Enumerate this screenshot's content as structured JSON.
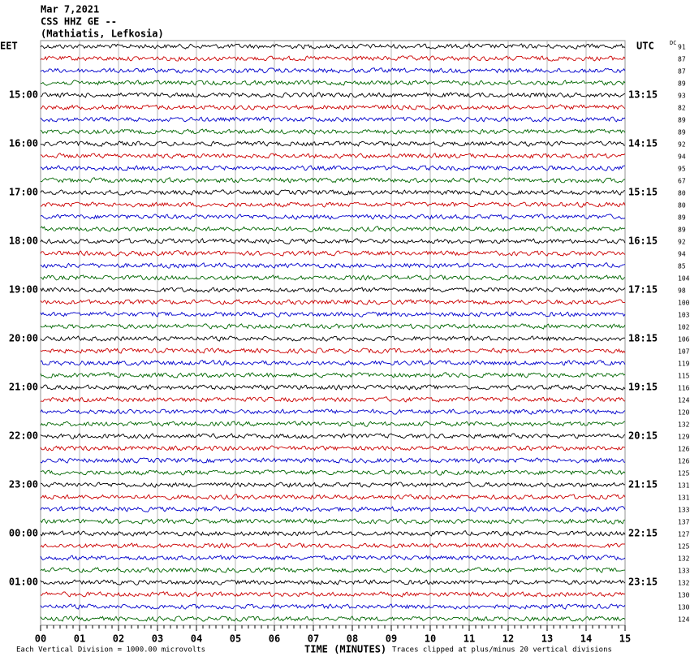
{
  "header": {
    "date": "Mar 7,2021",
    "station": "CSS HHZ GE --",
    "location": "(Mathiatis, Lefkosia)"
  },
  "left_zone": "EET",
  "right_zone": "UTC",
  "dc_label": "DC",
  "trace_colors": [
    "#000000",
    "#cc0000",
    "#0000cc",
    "#006600"
  ],
  "left_hours": [
    "15:00",
    "16:00",
    "17:00",
    "18:00",
    "19:00",
    "20:00",
    "21:00",
    "22:00",
    "23:00",
    "00:00",
    "01:00"
  ],
  "right_hours": [
    "13:15",
    "14:15",
    "15:15",
    "16:15",
    "17:15",
    "18:15",
    "19:15",
    "20:15",
    "21:15",
    "22:15",
    "23:15"
  ],
  "dc_values": [
    91,
    87,
    87,
    89,
    93,
    82,
    89,
    89,
    92,
    94,
    95,
    67,
    80,
    80,
    89,
    89,
    92,
    94,
    85,
    104,
    98,
    100,
    103,
    102,
    106,
    107,
    119,
    115,
    116,
    124,
    120,
    132,
    129,
    126,
    126,
    125,
    131,
    131,
    133,
    137,
    127,
    125,
    132,
    133,
    132,
    130,
    130,
    124
  ],
  "minute_ticks": [
    "00",
    "01",
    "02",
    "03",
    "04",
    "05",
    "06",
    "07",
    "08",
    "09",
    "10",
    "11",
    "12",
    "13",
    "14",
    "15"
  ],
  "x_label": "TIME (MINUTES)",
  "scale_note": "Each Vertical Division = 1000.00 microvolts",
  "clip_note": "Traces clipped at plus/minus 20 vertical divisions"
}
